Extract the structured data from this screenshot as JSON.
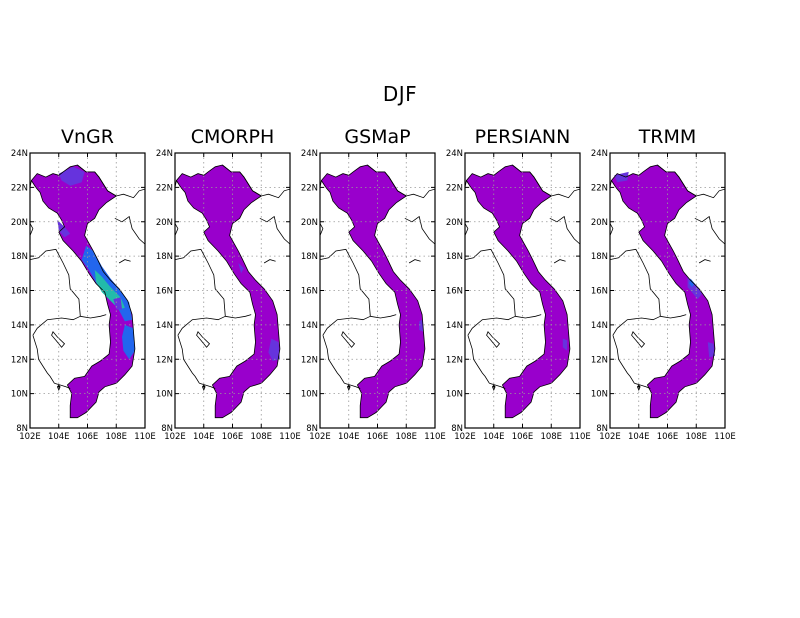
{
  "figure": {
    "title": "DJF",
    "panels": [
      "VnGR",
      "CMORPH",
      "GSMaP",
      "PERSIANN",
      "TRMM"
    ],
    "lat_ticks": [
      "8N",
      "10N",
      "12N",
      "14N",
      "16N",
      "18N",
      "20N",
      "22N",
      "24N"
    ],
    "lon_ticks": [
      "102E",
      "104E",
      "106E",
      "108E",
      "110E"
    ],
    "lon_range": [
      102,
      110
    ],
    "lat_range": [
      8,
      24
    ],
    "grid": "dotted",
    "colors": {
      "low": "#9900cc",
      "mid": "#6633dd",
      "blue": "#2266ee",
      "teal": "#22bbaa",
      "frame": "#000000"
    }
  }
}
